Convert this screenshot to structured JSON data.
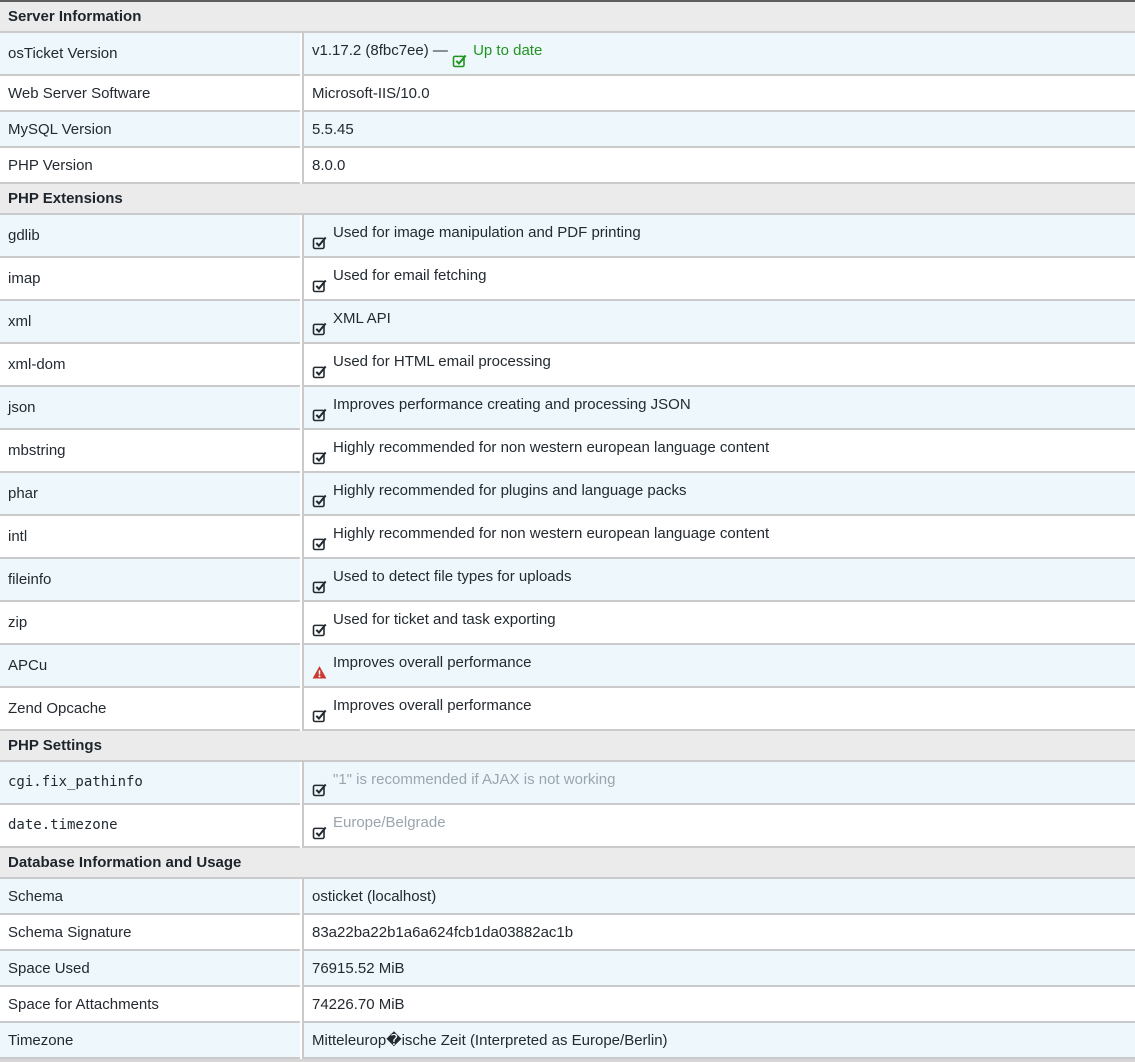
{
  "page": {
    "title": "Server Information"
  },
  "colors": {
    "ok_green": "#219421",
    "warning_red": "#cb3a32",
    "faded_text": "#9aa5ad",
    "row_highlight": "#eef7fc",
    "section_header_bg": "#ebebeb",
    "border": "#cacaca",
    "text": "#232a31"
  },
  "table": {
    "sections": [
      {
        "header": "Server Information",
        "rows": [
          {
            "label": "osTicket Version",
            "prefix": "v1.17.2 (8fbc7ee) — ",
            "icon": "check-green",
            "value": "Up to date",
            "value_style": "green"
          },
          {
            "label": "Web Server Software",
            "value": "Microsoft-IIS/10.0"
          },
          {
            "label": "MySQL Version",
            "value": "5.5.45"
          },
          {
            "label": "PHP Version",
            "value": "8.0.0"
          }
        ]
      },
      {
        "header": "PHP Extensions",
        "rows": [
          {
            "label": "gdlib",
            "icon": "check",
            "value": "Used for image manipulation and PDF printing"
          },
          {
            "label": "imap",
            "icon": "check",
            "value": "Used for email fetching"
          },
          {
            "label": "xml",
            "icon": "check",
            "value": "XML API"
          },
          {
            "label": "xml-dom",
            "icon": "check",
            "value": "Used for HTML email processing"
          },
          {
            "label": "json",
            "icon": "check",
            "value": "Improves performance creating and processing JSON"
          },
          {
            "label": "mbstring",
            "icon": "check",
            "value": "Highly recommended for non western european language content"
          },
          {
            "label": "phar",
            "icon": "check",
            "value": "Highly recommended for plugins and language packs"
          },
          {
            "label": "intl",
            "icon": "check",
            "value": "Highly recommended for non western european language content"
          },
          {
            "label": "fileinfo",
            "icon": "check",
            "value": "Used to detect file types for uploads"
          },
          {
            "label": "zip",
            "icon": "check",
            "value": "Used for ticket and task exporting"
          },
          {
            "label": "APCu",
            "icon": "warning",
            "value": "Improves overall performance"
          },
          {
            "label": "Zend Opcache",
            "icon": "check",
            "value": "Improves overall performance"
          }
        ]
      },
      {
        "header": "PHP Settings",
        "rows": [
          {
            "label": "cgi.fix_pathinfo",
            "mono": true,
            "icon": "check",
            "value": "\"1\" is recommended if AJAX is not working",
            "value_style": "faded"
          },
          {
            "label": "date.timezone",
            "mono": true,
            "icon": "check",
            "value": "Europe/Belgrade",
            "value_style": "faded"
          }
        ]
      },
      {
        "header": "Database Information and Usage",
        "rows": [
          {
            "label": "Schema",
            "value": "osticket (localhost)"
          },
          {
            "label": "Schema Signature",
            "value": "83a22ba22b1a6a624fcb1da03882ac1b"
          },
          {
            "label": "Space Used",
            "value": "76915.52 MiB"
          },
          {
            "label": "Space for Attachments",
            "value": "74226.70 MiB"
          },
          {
            "label": "Timezone",
            "value": "Mitteleurop�ische Zeit (Interpreted as Europe/Berlin)"
          }
        ]
      }
    ]
  }
}
